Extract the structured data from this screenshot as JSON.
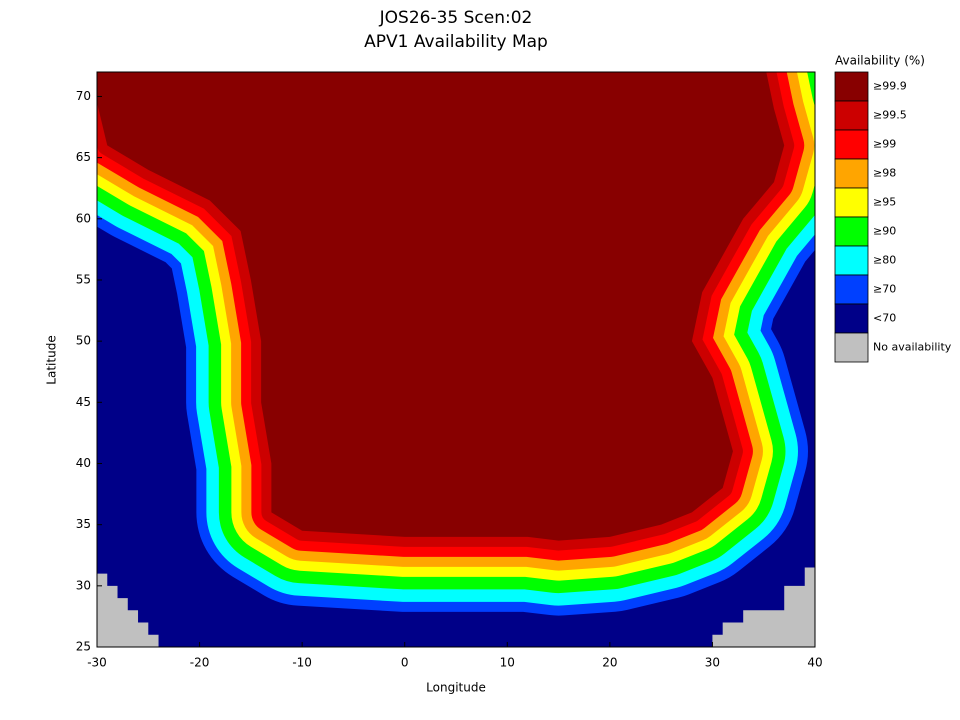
{
  "chart_data": {
    "type": "map",
    "title": "JOS26-35 Scen:02",
    "subtitle": "APV1 Availability Map",
    "xlabel": "Longitude",
    "ylabel": "Latitude",
    "xlim": [
      -30,
      40
    ],
    "ylim": [
      25,
      72
    ],
    "xticks": [
      -30,
      -20,
      -10,
      0,
      10,
      20,
      30,
      40
    ],
    "yticks": [
      25,
      30,
      35,
      40,
      45,
      50,
      55,
      60,
      65,
      70
    ],
    "legend": {
      "title": "Availability (%)",
      "entries": [
        {
          "label": "≥99.9",
          "color": "#880000"
        },
        {
          "label": "≥99.5",
          "color": "#cc0000"
        },
        {
          "label": "≥99",
          "color": "#ff0000"
        },
        {
          "label": "≥98",
          "color": "#ffa500"
        },
        {
          "label": "≥95",
          "color": "#ffff00"
        },
        {
          "label": "≥90",
          "color": "#00ff00"
        },
        {
          "label": "≥80",
          "color": "#00ffff"
        },
        {
          "label": "≥70",
          "color": "#0040ff"
        },
        {
          "label": "<70",
          "color": "#000088"
        },
        {
          "label": "No availability",
          "color": "#c0c0c0"
        }
      ]
    }
  }
}
